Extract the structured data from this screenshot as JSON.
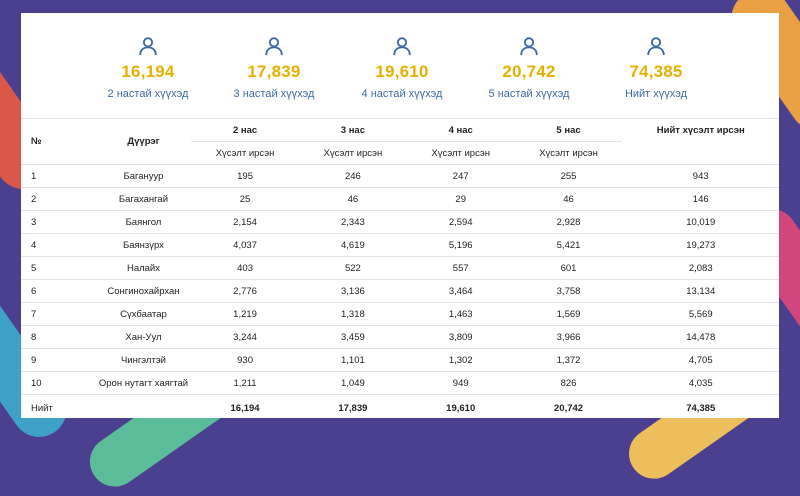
{
  "stats": [
    {
      "value": "16,194",
      "label": "2 настай хүүхэд",
      "icon": "person-icon"
    },
    {
      "value": "17,839",
      "label": "3 настай хүүхэд",
      "icon": "person-icon"
    },
    {
      "value": "19,610",
      "label": "4 настай хүүхэд",
      "icon": "person-icon"
    },
    {
      "value": "20,742",
      "label": "5 настай хүүхэд",
      "icon": "person-icon"
    },
    {
      "value": "74,385",
      "label": "Нийт хүүхэд",
      "icon": "person-icon"
    }
  ],
  "colors": {
    "accent_number": "#e6b000",
    "accent_label": "#3d6aa3",
    "icon": "#3d6aa3",
    "background": "#4b3f8f"
  },
  "table": {
    "headers": {
      "no": "№",
      "district": "Дүүрэг",
      "age2": "2 нас",
      "age3": "3 нас",
      "age4": "4 нас",
      "age5": "5 нас",
      "total": "Нийт хүсэлт ирсэн",
      "sub2": "Хүсэлт ирсэн",
      "sub3": "Хүсэлт ирсэн",
      "sub4": "Хүсэлт ирсэн",
      "sub5": "Хүсэлт ирсэн"
    },
    "rows": [
      {
        "no": "1",
        "district": "Багануур",
        "a2": "195",
        "a3": "246",
        "a4": "247",
        "a5": "255",
        "total": "943"
      },
      {
        "no": "2",
        "district": "Багахангай",
        "a2": "25",
        "a3": "46",
        "a4": "29",
        "a5": "46",
        "total": "146"
      },
      {
        "no": "3",
        "district": "Баянгол",
        "a2": "2,154",
        "a3": "2,343",
        "a4": "2,594",
        "a5": "2,928",
        "total": "10,019"
      },
      {
        "no": "4",
        "district": "Баянзүрх",
        "a2": "4,037",
        "a3": "4,619",
        "a4": "5,196",
        "a5": "5,421",
        "total": "19,273"
      },
      {
        "no": "5",
        "district": "Налайх",
        "a2": "403",
        "a3": "522",
        "a4": "557",
        "a5": "601",
        "total": "2,083"
      },
      {
        "no": "6",
        "district": "Сонгинохайрхан",
        "a2": "2,776",
        "a3": "3,136",
        "a4": "3,464",
        "a5": "3,758",
        "total": "13,134"
      },
      {
        "no": "7",
        "district": "Сүхбаатар",
        "a2": "1,219",
        "a3": "1,318",
        "a4": "1,463",
        "a5": "1,569",
        "total": "5,569"
      },
      {
        "no": "8",
        "district": "Хан-Уул",
        "a2": "3,244",
        "a3": "3,459",
        "a4": "3,809",
        "a5": "3,966",
        "total": "14,478"
      },
      {
        "no": "9",
        "district": "Чингэлтэй",
        "a2": "930",
        "a3": "1,101",
        "a4": "1,302",
        "a5": "1,372",
        "total": "4,705"
      },
      {
        "no": "10",
        "district": "Орон нутагт хаягтай",
        "a2": "1,211",
        "a3": "1,049",
        "a4": "949",
        "a5": "826",
        "total": "4,035"
      }
    ],
    "footer": {
      "label": "Нийт",
      "a2": "16,194",
      "a3": "17,839",
      "a4": "19,610",
      "a5": "20,742",
      "total": "74,385"
    }
  }
}
